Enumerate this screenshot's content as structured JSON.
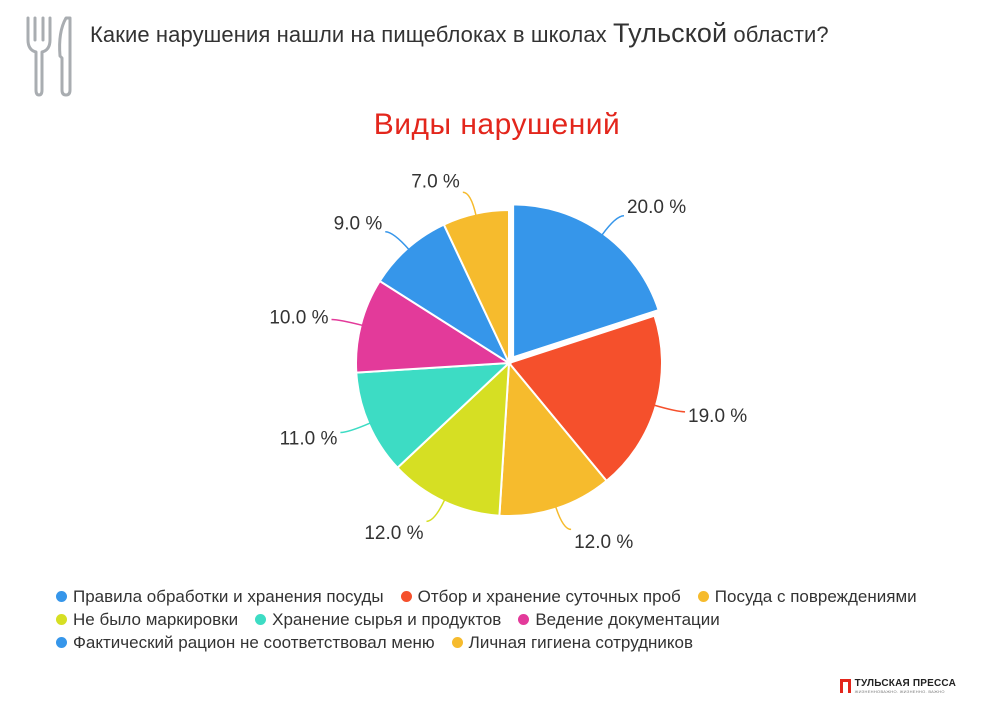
{
  "header": {
    "text_before": "Какие нарушения нашли на пищеблоках в школах ",
    "text_highlight": "Тульской",
    "text_after": " области?"
  },
  "icons": {
    "header": "fork-knife-icon",
    "brand": "brand-logo-icon"
  },
  "brand": {
    "name": "ТУЛЬСКАЯ ПРЕССА",
    "tagline": "ЖИЗНЕННОВАЖНО. ЖИЗНЕННО. ВАЖНО",
    "color": "#e3261c"
  },
  "chart_data": {
    "type": "pie",
    "title": "Виды нарушений",
    "title_color": "#e3261c",
    "exploded_slice": 0,
    "slices": [
      {
        "label": "Правила обработки и хранения посуды",
        "value": 20.0,
        "value_label": "20.0 %",
        "color": "#3696ea"
      },
      {
        "label": "Отбор и хранение суточных проб",
        "value": 19.0,
        "value_label": "19.0 %",
        "color": "#f5502c"
      },
      {
        "label": "Посуда с повреждениями",
        "value": 12.0,
        "value_label": "12.0 %",
        "color": "#f6bb2d"
      },
      {
        "label": "Не было маркировки",
        "value": 12.0,
        "value_label": "12.0 %",
        "color": "#d6df23"
      },
      {
        "label": "Хранение сырья и продуктов",
        "value": 11.0,
        "value_label": "11.0 %",
        "color": "#3ddcc4"
      },
      {
        "label": "Ведение документации",
        "value": 10.0,
        "value_label": "10.0 %",
        "color": "#e33a9a"
      },
      {
        "label": "Фактический рацион не соответствовал меню",
        "value": 9.0,
        "value_label": "9.0 %",
        "color": "#3696ea"
      },
      {
        "label": "Личная гигиена сотрудников",
        "value": 7.0,
        "value_label": "7.0 %",
        "color": "#f6bb2d"
      }
    ],
    "legend_placement": "bottom"
  }
}
